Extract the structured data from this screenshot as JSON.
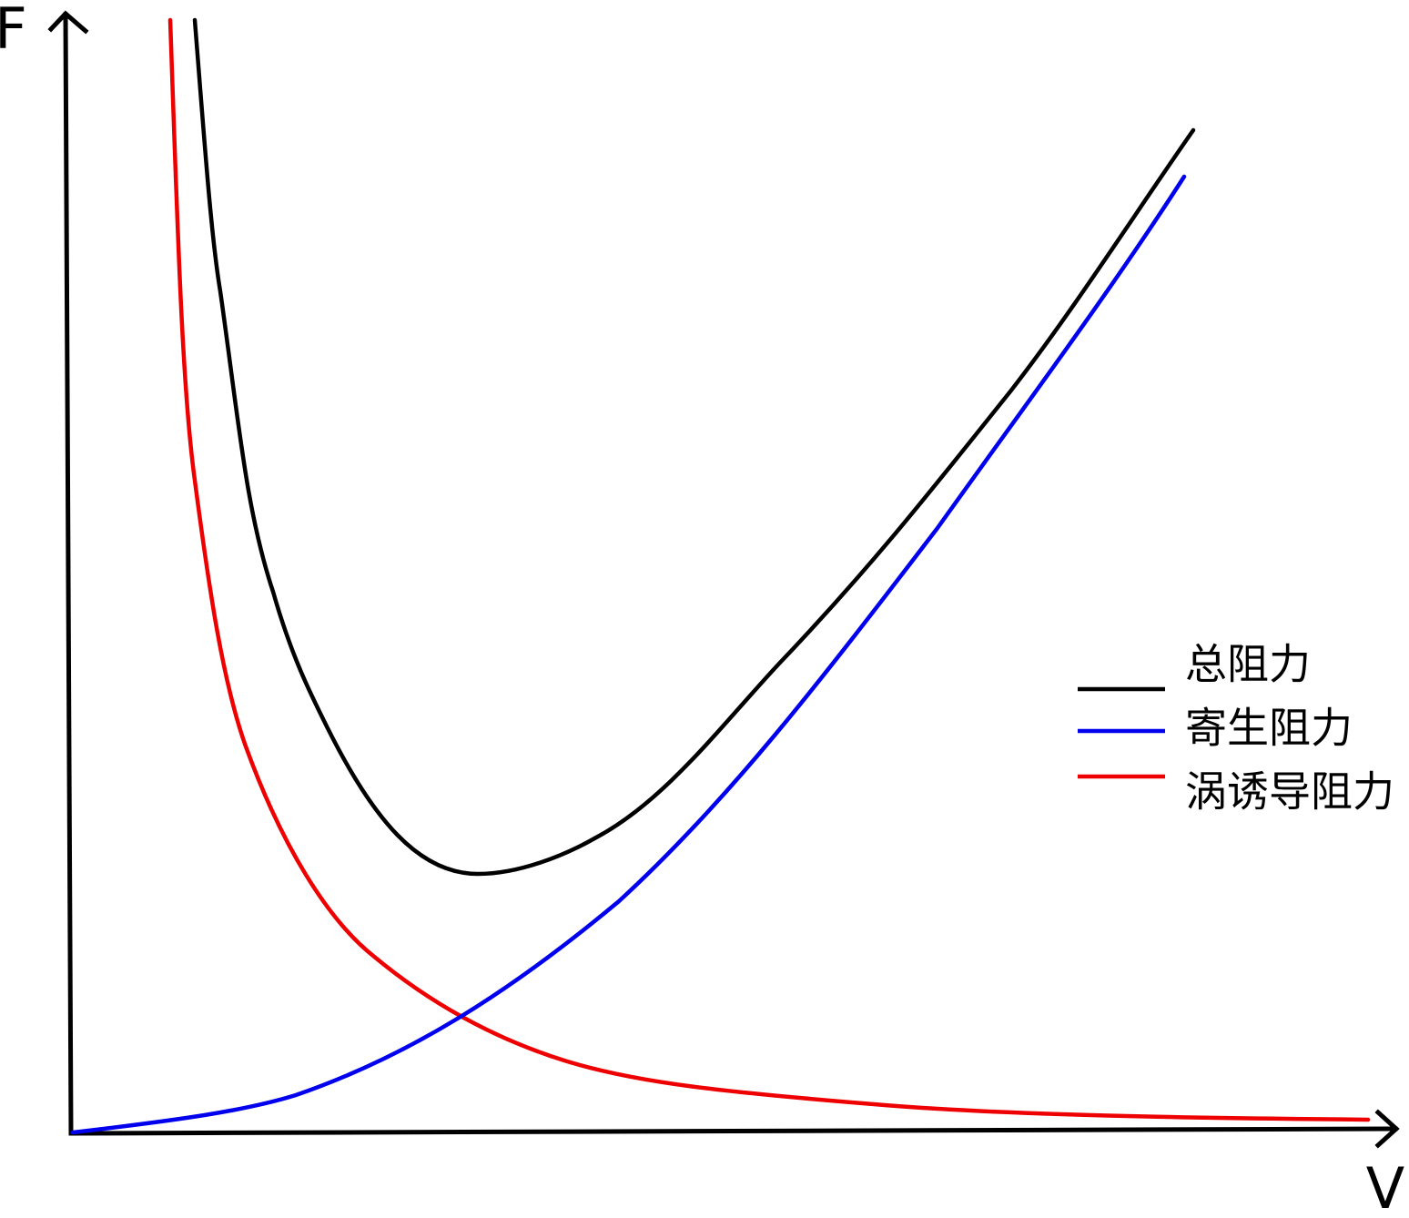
{
  "axes": {
    "y_label": "F",
    "x_label": "V"
  },
  "legend": [
    {
      "label": "总阻力",
      "color": "#000000"
    },
    {
      "label": "寄生阻力",
      "color": "#0000ee"
    },
    {
      "label": "涡诱导阻力",
      "color": "#ee0000"
    }
  ]
}
